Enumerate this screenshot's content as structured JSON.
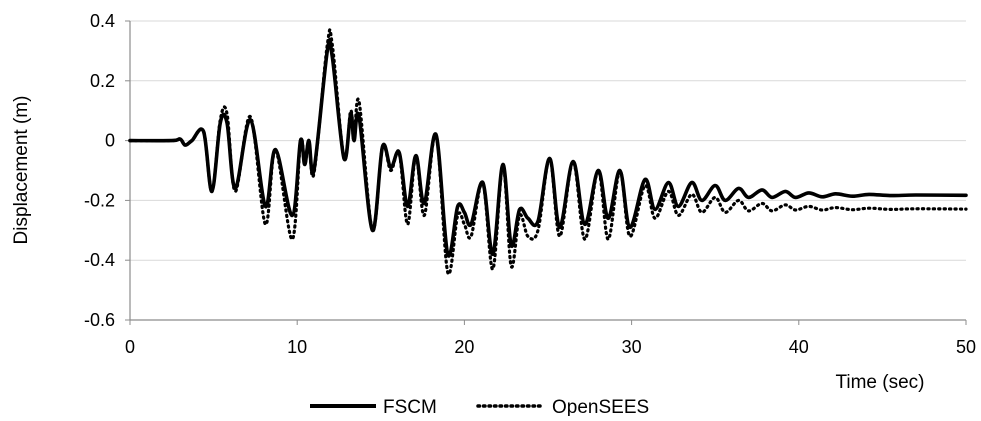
{
  "chart_data": {
    "type": "line",
    "title": "",
    "xlabel": "Time (sec)",
    "ylabel": "Displacement (m)",
    "xlim": [
      0,
      50
    ],
    "ylim": [
      -0.6,
      0.4
    ],
    "x_ticks": [
      "0",
      "10",
      "20",
      "30",
      "40",
      "50"
    ],
    "y_ticks": [
      "0.4",
      "0.2",
      "0",
      "-0.2",
      "-0.4",
      "-0.6"
    ],
    "x_tick_values": [
      0,
      10,
      20,
      30,
      40,
      50
    ],
    "y_tick_values": [
      0.4,
      0.2,
      0,
      -0.2,
      -0.4,
      -0.6
    ],
    "grid": "horizontal",
    "legend_position": "bottom",
    "series": [
      {
        "name": "FSCM",
        "style": "solid",
        "color": "#000000",
        "points": [
          [
            0,
            0
          ],
          [
            2.5,
            0
          ],
          [
            3.0,
            0.005
          ],
          [
            3.3,
            -0.015
          ],
          [
            3.7,
            0
          ],
          [
            4.4,
            0.03
          ],
          [
            4.9,
            -0.17
          ],
          [
            5.4,
            0.06
          ],
          [
            5.8,
            0.06
          ],
          [
            6.3,
            -0.16
          ],
          [
            7.2,
            0.07
          ],
          [
            8.1,
            -0.22
          ],
          [
            8.7,
            -0.03
          ],
          [
            9.7,
            -0.25
          ],
          [
            10.2,
            0
          ],
          [
            10.45,
            -0.08
          ],
          [
            10.7,
            0
          ],
          [
            11.0,
            -0.1
          ],
          [
            11.8,
            0.3
          ],
          [
            12.1,
            0.28
          ],
          [
            12.8,
            -0.06
          ],
          [
            13.2,
            0.09
          ],
          [
            13.4,
            0
          ],
          [
            13.7,
            0.08
          ],
          [
            14.5,
            -0.3
          ],
          [
            15.1,
            -0.02
          ],
          [
            15.6,
            -0.09
          ],
          [
            16.1,
            -0.04
          ],
          [
            16.6,
            -0.22
          ],
          [
            17.1,
            -0.05
          ],
          [
            17.6,
            -0.21
          ],
          [
            18.3,
            0.02
          ],
          [
            19.0,
            -0.38
          ],
          [
            19.6,
            -0.22
          ],
          [
            20.0,
            -0.24
          ],
          [
            20.4,
            -0.28
          ],
          [
            21.1,
            -0.14
          ],
          [
            21.7,
            -0.38
          ],
          [
            22.3,
            -0.08
          ],
          [
            22.8,
            -0.35
          ],
          [
            23.3,
            -0.23
          ],
          [
            23.8,
            -0.26
          ],
          [
            24.4,
            -0.27
          ],
          [
            25.1,
            -0.06
          ],
          [
            25.7,
            -0.29
          ],
          [
            26.5,
            -0.07
          ],
          [
            27.2,
            -0.28
          ],
          [
            28.0,
            -0.1
          ],
          [
            28.6,
            -0.26
          ],
          [
            29.3,
            -0.1
          ],
          [
            29.9,
            -0.29
          ],
          [
            30.8,
            -0.13
          ],
          [
            31.4,
            -0.23
          ],
          [
            32.2,
            -0.14
          ],
          [
            32.8,
            -0.22
          ],
          [
            33.6,
            -0.14
          ],
          [
            34.2,
            -0.2
          ],
          [
            35.0,
            -0.15
          ],
          [
            35.6,
            -0.2
          ],
          [
            36.4,
            -0.16
          ],
          [
            37.0,
            -0.19
          ],
          [
            37.8,
            -0.165
          ],
          [
            38.4,
            -0.19
          ],
          [
            39.2,
            -0.17
          ],
          [
            39.8,
            -0.19
          ],
          [
            40.6,
            -0.175
          ],
          [
            41.4,
            -0.188
          ],
          [
            42.2,
            -0.178
          ],
          [
            43.2,
            -0.186
          ],
          [
            44.2,
            -0.18
          ],
          [
            45.5,
            -0.184
          ],
          [
            47.0,
            -0.182
          ],
          [
            50,
            -0.183
          ]
        ]
      },
      {
        "name": "OpenSEES",
        "style": "dotted",
        "color": "#000000",
        "points": [
          [
            0,
            0
          ],
          [
            2.5,
            0
          ],
          [
            3.0,
            0.005
          ],
          [
            3.3,
            -0.015
          ],
          [
            3.7,
            0
          ],
          [
            4.4,
            0.03
          ],
          [
            4.9,
            -0.17
          ],
          [
            5.4,
            0.07
          ],
          [
            5.8,
            0.09
          ],
          [
            6.3,
            -0.17
          ],
          [
            7.2,
            0.08
          ],
          [
            8.1,
            -0.28
          ],
          [
            8.7,
            -0.03
          ],
          [
            9.7,
            -0.33
          ],
          [
            10.2,
            0
          ],
          [
            10.45,
            -0.08
          ],
          [
            10.7,
            0
          ],
          [
            11.0,
            -0.11
          ],
          [
            11.8,
            0.32
          ],
          [
            12.1,
            0.32
          ],
          [
            12.8,
            -0.06
          ],
          [
            13.2,
            0.1
          ],
          [
            13.4,
            0
          ],
          [
            13.7,
            0.13
          ],
          [
            14.5,
            -0.3
          ],
          [
            15.1,
            -0.02
          ],
          [
            15.6,
            -0.1
          ],
          [
            16.1,
            -0.04
          ],
          [
            16.6,
            -0.28
          ],
          [
            17.1,
            -0.05
          ],
          [
            17.6,
            -0.25
          ],
          [
            18.3,
            0.02
          ],
          [
            19.0,
            -0.44
          ],
          [
            19.6,
            -0.25
          ],
          [
            20.0,
            -0.28
          ],
          [
            20.4,
            -0.32
          ],
          [
            21.1,
            -0.14
          ],
          [
            21.7,
            -0.43
          ],
          [
            22.3,
            -0.08
          ],
          [
            22.8,
            -0.42
          ],
          [
            23.3,
            -0.25
          ],
          [
            23.8,
            -0.32
          ],
          [
            24.4,
            -0.3
          ],
          [
            25.1,
            -0.06
          ],
          [
            25.7,
            -0.32
          ],
          [
            26.5,
            -0.07
          ],
          [
            27.2,
            -0.33
          ],
          [
            28.0,
            -0.1
          ],
          [
            28.6,
            -0.33
          ],
          [
            29.3,
            -0.1
          ],
          [
            29.9,
            -0.32
          ],
          [
            30.8,
            -0.15
          ],
          [
            31.4,
            -0.26
          ],
          [
            32.2,
            -0.17
          ],
          [
            32.8,
            -0.25
          ],
          [
            33.6,
            -0.18
          ],
          [
            34.2,
            -0.24
          ],
          [
            35.0,
            -0.19
          ],
          [
            35.6,
            -0.24
          ],
          [
            36.4,
            -0.2
          ],
          [
            37.0,
            -0.235
          ],
          [
            37.8,
            -0.21
          ],
          [
            38.4,
            -0.235
          ],
          [
            39.2,
            -0.215
          ],
          [
            39.8,
            -0.232
          ],
          [
            40.6,
            -0.22
          ],
          [
            41.4,
            -0.232
          ],
          [
            42.2,
            -0.224
          ],
          [
            43.2,
            -0.231
          ],
          [
            44.2,
            -0.226
          ],
          [
            45.5,
            -0.23
          ],
          [
            47.0,
            -0.228
          ],
          [
            50,
            -0.229
          ]
        ]
      }
    ]
  }
}
